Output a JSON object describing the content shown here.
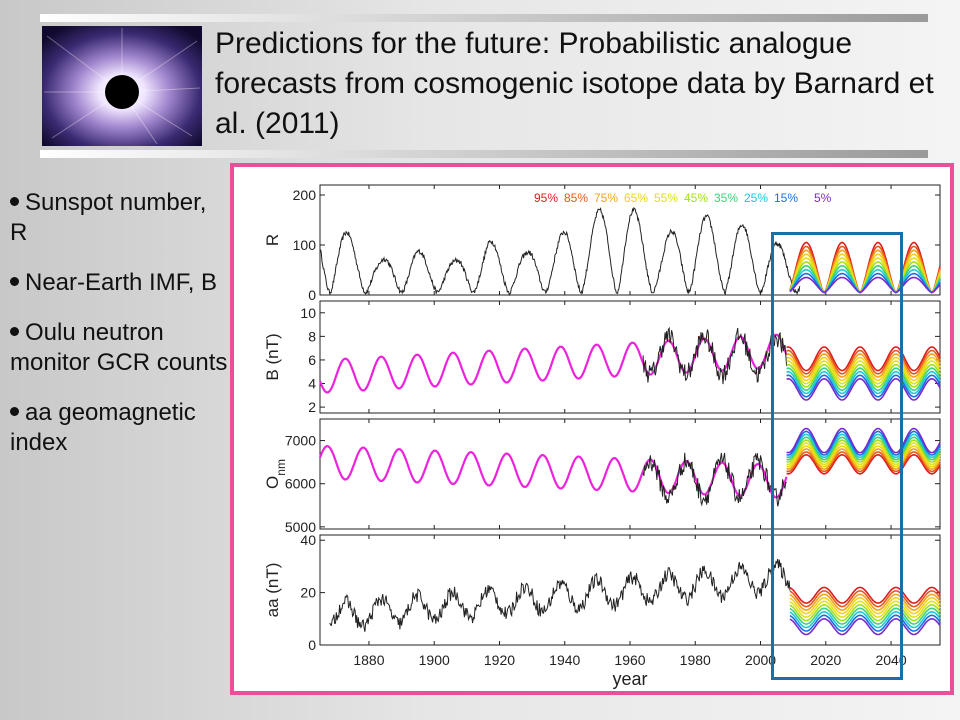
{
  "title": "Predictions for the future: Probabilistic analogue forecasts from cosmogenic isotope data by Barnard et al. (2011)",
  "bullets": [
    "Sunspot number, R",
    "Near-Earth IMF, B",
    "Oulu neutron monitor GCR counts",
    "aa geomagnetic index"
  ],
  "colors": {
    "pink_frame": "#ec4f9a",
    "blue_box": "#1a6fa8",
    "reconstruction": "#ee22dd",
    "observed": "#222222"
  },
  "chart_data": {
    "type": "line",
    "xlabel": "year",
    "xlim": [
      1865,
      2055
    ],
    "x_ticks": [
      1880,
      1900,
      1920,
      1940,
      1960,
      1980,
      2000,
      2020,
      2040
    ],
    "legend": {
      "placement": "top-right",
      "labels": [
        "95%",
        "85%",
        "75%",
        "65%",
        "55%",
        "45%",
        "35%",
        "25%",
        "15%",
        "5%"
      ],
      "colors": [
        "#e21a1a",
        "#e25a1a",
        "#f3a21a",
        "#f3d21a",
        "#e0e21a",
        "#a2e01a",
        "#3ed27a",
        "#1ac8e0",
        "#1a6fe0",
        "#7a2ad0"
      ]
    },
    "panels": [
      {
        "ylabel": "R",
        "ylim": [
          0,
          220
        ],
        "ticks": [
          "0",
          "100",
          "200"
        ],
        "tick_values": [
          0,
          100,
          200
        ],
        "observed": {
          "start": 1865,
          "end": 2012,
          "cycle_peaks": [
            [
              1870,
              139
            ],
            [
              1883,
              64
            ],
            [
              1894,
              85
            ],
            [
              1906,
              62
            ],
            [
              1917,
              104
            ],
            [
              1928,
              78
            ],
            [
              1938,
              114
            ],
            [
              1947,
              152
            ],
            [
              1958,
              190
            ],
            [
              1969,
              106
            ],
            [
              1980,
              155
            ],
            [
              1990,
              146
            ],
            [
              2001,
              120
            ],
            [
              2013,
              60
            ]
          ]
        },
        "forecast": {
          "start": 2009,
          "end": 2055,
          "period": 11,
          "center_low": 55,
          "amp_low": 45,
          "center_high": 55,
          "amp_high": 45
        }
      },
      {
        "ylabel": "B (nT)",
        "ylim": [
          1.5,
          11
        ],
        "ticks": [
          "2",
          "4",
          "6",
          "8",
          "10"
        ],
        "tick_values": [
          2,
          4,
          6,
          8,
          10
        ],
        "reconstruction": {
          "start": 1865,
          "end": 2008,
          "base_start": 4.6,
          "base_end": 6.8,
          "amplitude": 1.4
        },
        "observed": {
          "start": 1964,
          "end": 2008,
          "base": 6.4,
          "amplitude": 1.6
        },
        "forecast": {
          "start": 2008,
          "end": 2055,
          "period": 11,
          "center_low": 3.5,
          "amp_low": 0.9,
          "center_high": 6.1,
          "amp_high": 1.0
        }
      },
      {
        "ylabel": "O",
        "ylabel_sub": "nm",
        "ylim": [
          4950,
          7500
        ],
        "ticks": [
          "5000",
          "6000",
          "7000"
        ],
        "tick_values": [
          5000,
          6000,
          7000
        ],
        "reconstruction": {
          "start": 1865,
          "end": 2008,
          "base_start": 6500,
          "base_end": 6050,
          "amplitude": 380
        },
        "observed": {
          "start": 1964,
          "end": 2008,
          "base": 6100,
          "amplitude": 420
        },
        "forecast": {
          "start": 2008,
          "end": 2055,
          "period": 11,
          "center_low": 6450,
          "amp_low": 280,
          "center_high": 7000,
          "amp_high": 220
        }
      },
      {
        "ylabel": "aa (nT)",
        "ylim": [
          0,
          42
        ],
        "ticks": [
          "0",
          "20",
          "40"
        ],
        "tick_values": [
          0,
          20,
          40
        ],
        "observed": {
          "start": 1868,
          "end": 2009,
          "base_start": 11,
          "base_end": 26,
          "amplitude": 5
        },
        "forecast": {
          "start": 2009,
          "end": 2055,
          "period": 11,
          "center_low": 7,
          "amp_low": 3,
          "center_high": 19,
          "amp_high": 3
        }
      }
    ]
  }
}
